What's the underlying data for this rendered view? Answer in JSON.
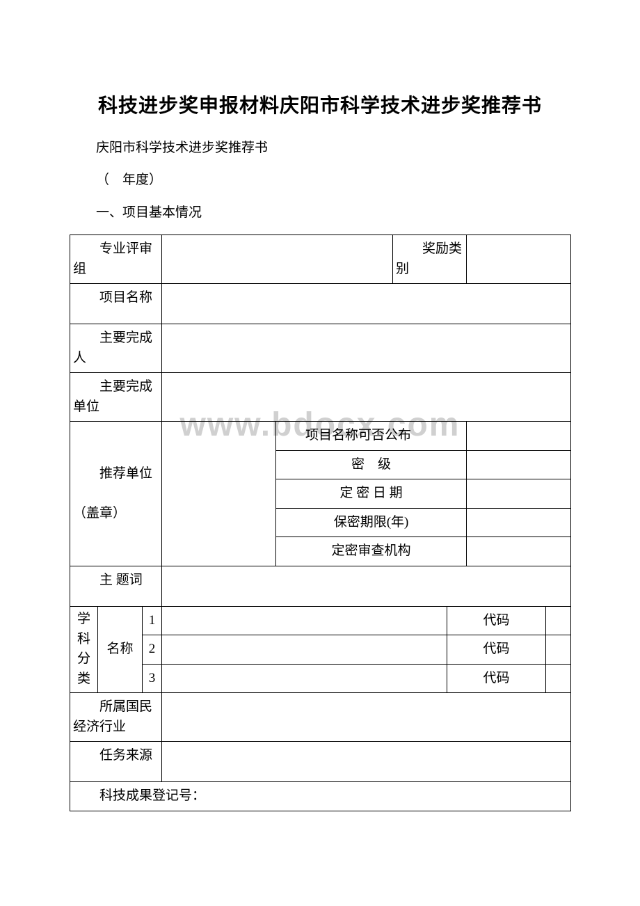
{
  "title": "科技进步奖申报材料庆阳市科学技术进步奖推荐书",
  "subtitle": "庆阳市科学技术进步奖推荐书",
  "year_line": "（　年度）",
  "section_heading": "一、项目基本情况",
  "watermark": "www.bdocx.com",
  "table": {
    "row1": {
      "label_left": "专业评审组",
      "label_right": "奖励类别"
    },
    "row2": {
      "label": "项目名称"
    },
    "row3": {
      "label": "主要完成人"
    },
    "row4": {
      "label": "主要完成单位"
    },
    "row5": {
      "label": "推荐单位",
      "sublabel": "（盖章）",
      "sub1": "项目名称可否公布",
      "sub2": "密　级",
      "sub3": "定 密 日 期",
      "sub4": "保密期限(年)",
      "sub5": "定密审查机构"
    },
    "row6": {
      "label": "主 题词"
    },
    "row7": {
      "col_label_top": "学科分类",
      "col_label_bottom": "名称",
      "n1": "1",
      "n2": "2",
      "n3": "3",
      "code": "代码"
    },
    "row8": {
      "label": "所属国民经济行业"
    },
    "row9": {
      "label": "任务来源"
    },
    "row10": {
      "label": "科技成果登记号："
    }
  },
  "colors": {
    "background": "#ffffff",
    "text": "#000000",
    "border": "#000000",
    "watermark": "#d0d0d0"
  }
}
